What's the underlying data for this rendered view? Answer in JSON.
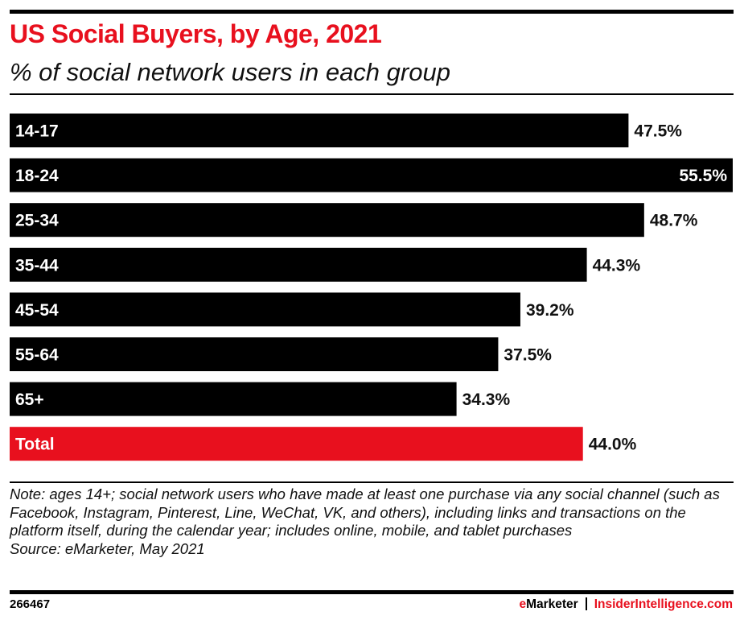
{
  "header": {
    "title": "US Social Buyers, by Age, 2021",
    "subtitle": "% of social network users in each group"
  },
  "chart_data": {
    "type": "bar",
    "orientation": "horizontal",
    "title": "US Social Buyers, by Age, 2021",
    "subtitle": "% of social network users in each group",
    "xlabel": "",
    "ylabel": "",
    "categories": [
      "14-17",
      "18-24",
      "25-34",
      "35-44",
      "45-54",
      "55-64",
      "65+",
      "Total"
    ],
    "values": [
      47.5,
      55.5,
      48.7,
      44.3,
      39.2,
      37.5,
      34.3,
      44.0
    ],
    "value_labels": [
      "47.5%",
      "55.5%",
      "48.7%",
      "44.3%",
      "39.2%",
      "37.5%",
      "34.3%",
      "44.0%"
    ],
    "highlight_category": "Total",
    "bar_color": "#000000",
    "highlight_color": "#e8101e",
    "xlim": [
      0,
      55.5
    ],
    "grid": false,
    "legend": "none"
  },
  "notes": {
    "note": "Note: ages 14+; social network users who have made at least one purchase via any social channel (such as Facebook, Instagram, Pinterest, Line, WeChat, VK, and others), including links and transactions on the platform itself, during the calendar year; includes online, mobile, and tablet purchases",
    "source": "Source: eMarketer, May 2021"
  },
  "footer": {
    "chart_id": "266467",
    "brand_e": "e",
    "brand_rest": "Marketer",
    "site": "InsiderIntelligence.com"
  },
  "colors": {
    "accent": "#e8101e",
    "text": "#000000"
  }
}
